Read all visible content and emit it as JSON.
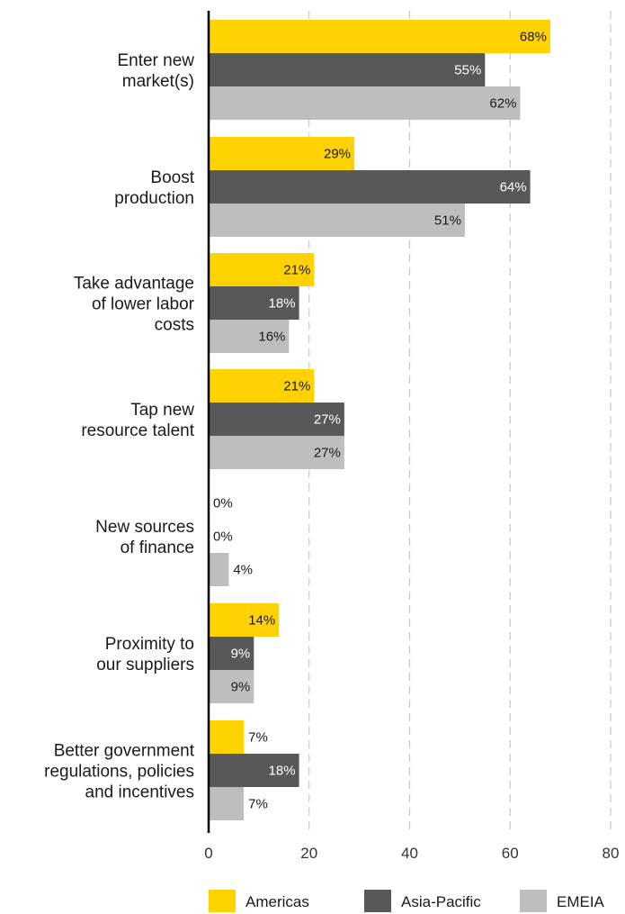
{
  "chart_data": {
    "type": "bar",
    "orientation": "horizontal",
    "categories": [
      [
        "Enter new",
        "market(s)"
      ],
      [
        "Boost",
        "production"
      ],
      [
        "Take advantage",
        "of lower labor",
        "costs"
      ],
      [
        "Tap new",
        "resource talent"
      ],
      [
        "New sources",
        "of finance"
      ],
      [
        "Proximity to",
        "our suppliers"
      ],
      [
        "Better government",
        "regulations, policies",
        "and incentives"
      ]
    ],
    "series": [
      {
        "name": "Americas",
        "color": "#FFD200",
        "label_color": "#1a1a1a",
        "values": [
          68,
          29,
          21,
          21,
          0,
          14,
          7
        ]
      },
      {
        "name": "Asia-Pacific",
        "color": "#58585A",
        "label_color": "#ffffff",
        "values": [
          55,
          64,
          18,
          27,
          0,
          9,
          18
        ]
      },
      {
        "name": "EMEIA",
        "color": "#BEBEBE",
        "label_color": "#1a1a1a",
        "values": [
          62,
          51,
          16,
          27,
          4,
          9,
          7
        ]
      }
    ],
    "value_suffix": "%",
    "xlim": [
      0,
      80
    ],
    "xticks": [
      "0",
      "20",
      "40",
      "60",
      "80"
    ],
    "grid": "vertical-dashed",
    "legend_position": "bottom-right"
  }
}
